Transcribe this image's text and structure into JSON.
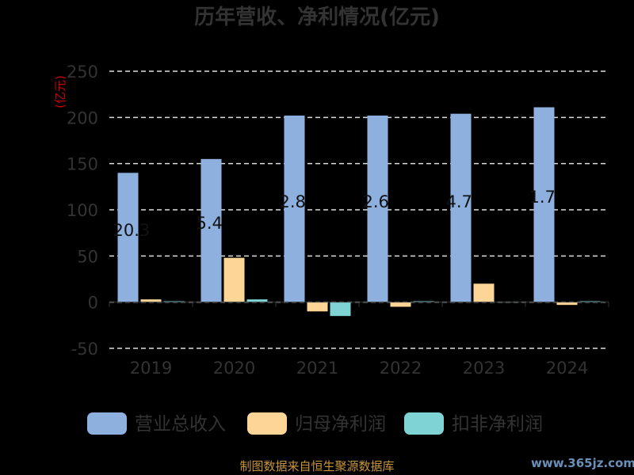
{
  "chart_data": {
    "type": "bar",
    "title": "历年营收、净利情况(亿元)",
    "unit_label": "(亿元)",
    "categories": [
      "2019",
      "2020",
      "2021",
      "2022",
      "2023",
      "2024"
    ],
    "ylim": [
      -50,
      250
    ],
    "yticks": [
      250,
      200,
      150,
      100,
      50,
      0,
      -50
    ],
    "grid": true,
    "legend_position": "bottom",
    "series": [
      {
        "name": "营业总收入",
        "color": "#8eb0df",
        "values": [
          140,
          155,
          202,
          202,
          204,
          211
        ]
      },
      {
        "name": "归母净利润",
        "color": "#fdd697",
        "values": [
          3,
          48,
          -10,
          -5,
          20,
          -3
        ]
      },
      {
        "name": "扣非净利润",
        "color": "#7fd3d4",
        "values": [
          1,
          3,
          -15,
          1,
          0.5,
          1
        ]
      }
    ],
    "data_labels": [
      {
        "category": "2019",
        "text": "20.3"
      },
      {
        "category": "2020",
        "text": "5.4"
      },
      {
        "category": "2021",
        "text": "2.8"
      },
      {
        "category": "2022",
        "text": "2.6"
      },
      {
        "category": "2023",
        "text": "4.7"
      },
      {
        "category": "2024",
        "text": "1.7"
      }
    ]
  },
  "footer": {
    "source": "制图数据来自恒生聚源数据库",
    "watermark": "www.365jz.com"
  }
}
